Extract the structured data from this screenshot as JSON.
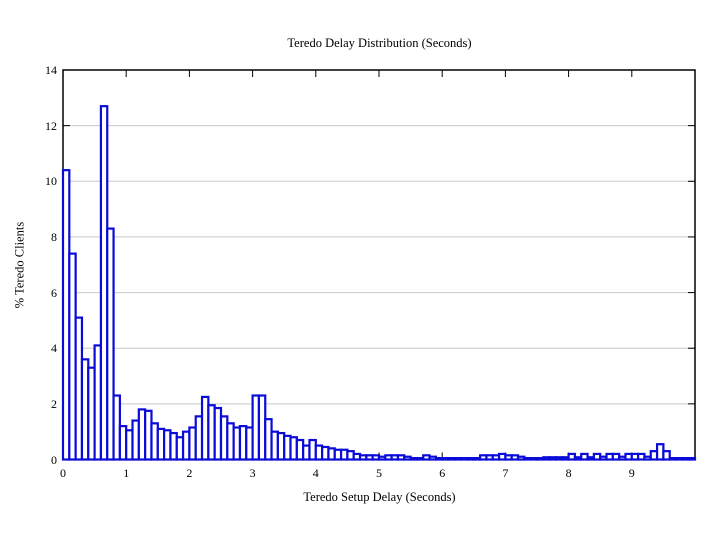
{
  "chart_data": {
    "type": "bar",
    "subtype": "histogram",
    "title": "Teredo Delay Distribution (Seconds)",
    "xlabel": "Teredo Setup Delay (Seconds)",
    "ylabel": "% Teredo Clients",
    "xlim": [
      0,
      10
    ],
    "ylim": [
      0,
      14
    ],
    "bin_start": 0,
    "bin_width": 0.1,
    "xticks": [
      0,
      1,
      2,
      3,
      4,
      5,
      6,
      7,
      8,
      9
    ],
    "yticks": [
      0,
      2,
      4,
      6,
      8,
      10,
      12,
      14
    ],
    "grid": "horizontal",
    "legend": "none",
    "bar_outline_color": "#0b0bd8",
    "bar_fill_color": "#ffffff",
    "grid_color": "#c9c9c9",
    "axis_color": "#000000",
    "background_color": "#ffffff",
    "values": [
      10.4,
      7.4,
      5.1,
      3.6,
      3.3,
      4.1,
      12.7,
      8.3,
      2.3,
      1.2,
      1.05,
      1.4,
      1.8,
      1.75,
      1.3,
      1.1,
      1.05,
      0.95,
      0.8,
      1.0,
      1.15,
      1.55,
      2.25,
      1.95,
      1.85,
      1.55,
      1.3,
      1.15,
      1.2,
      1.15,
      2.3,
      2.3,
      1.45,
      1.0,
      0.95,
      0.85,
      0.8,
      0.7,
      0.5,
      0.7,
      0.5,
      0.45,
      0.4,
      0.35,
      0.35,
      0.3,
      0.2,
      0.15,
      0.15,
      0.15,
      0.1,
      0.15,
      0.15,
      0.15,
      0.1,
      0.05,
      0.05,
      0.15,
      0.1,
      0.05,
      0.05,
      0.05,
      0.05,
      0.05,
      0.05,
      0.05,
      0.15,
      0.15,
      0.15,
      0.2,
      0.15,
      0.15,
      0.1,
      0.05,
      0.05,
      0.05,
      0.08,
      0.08,
      0.08,
      0.08,
      0.2,
      0.08,
      0.2,
      0.08,
      0.2,
      0.1,
      0.2,
      0.2,
      0.1,
      0.2,
      0.2,
      0.2,
      0.1,
      0.3,
      0.55,
      0.3,
      0.05,
      0.05,
      0.05,
      0.05
    ]
  }
}
